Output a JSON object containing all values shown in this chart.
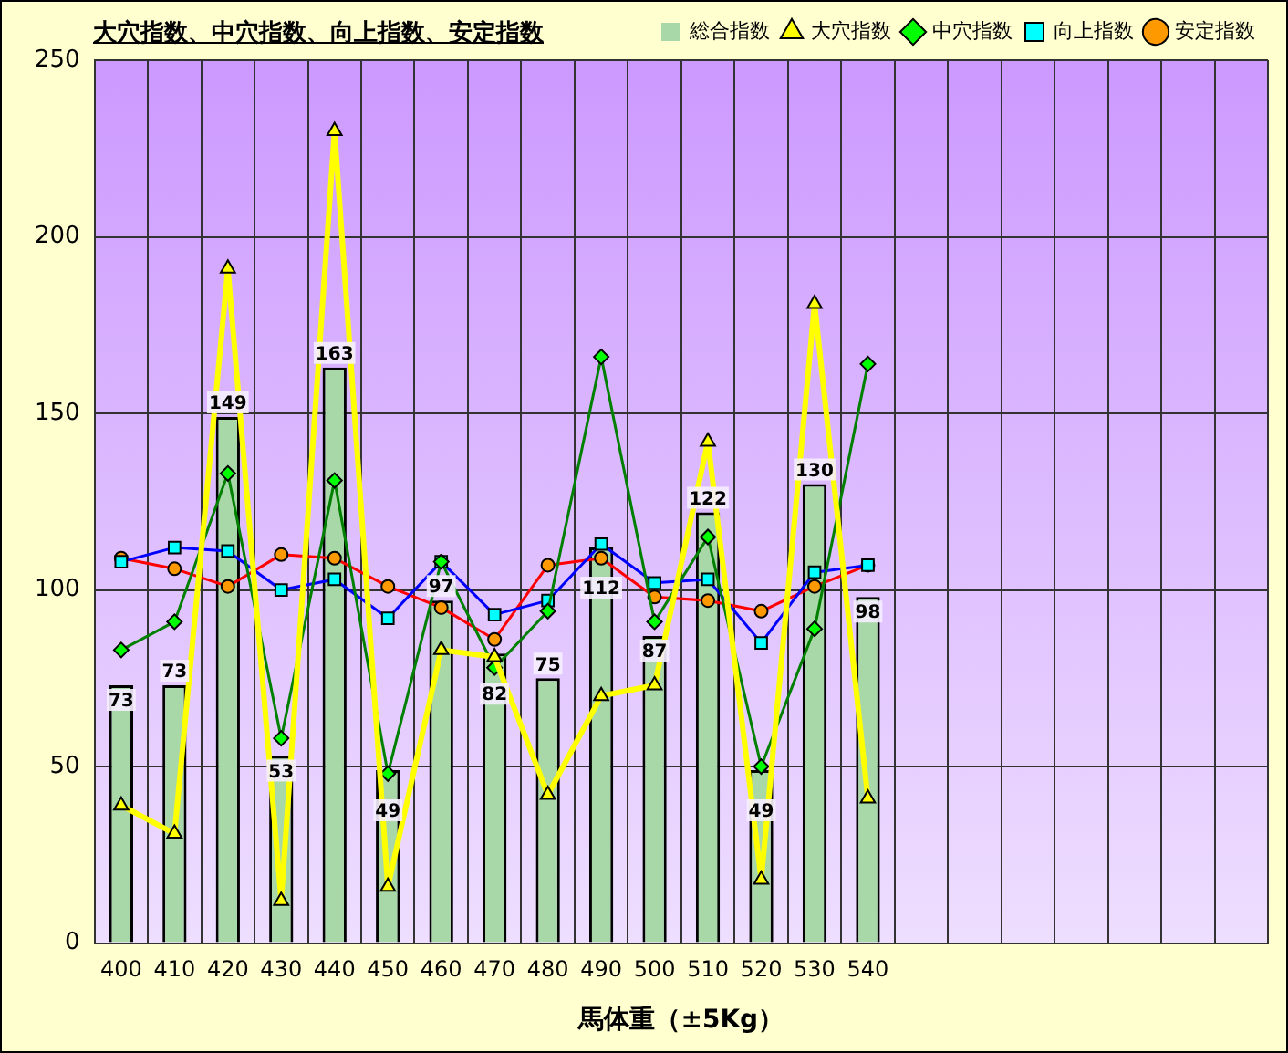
{
  "chart_data": {
    "type": "bar",
    "title": "大穴指数、中穴指数、向上指数、安定指数",
    "xlabel": "馬体重（±5Kg）",
    "categories": [
      "400",
      "410",
      "420",
      "430",
      "440",
      "450",
      "460",
      "470",
      "480",
      "490",
      "500",
      "510",
      "520",
      "530",
      "540",
      null,
      null,
      null,
      null,
      null,
      null,
      null
    ],
    "series": [
      {
        "name": "総合指数",
        "color": "#a8d8a8",
        "values": [
          73,
          73,
          149,
          53,
          163,
          49,
          97,
          82,
          75,
          112,
          87,
          122,
          49,
          130,
          98,
          null,
          null,
          null,
          null,
          null,
          null,
          null
        ],
        "value_labels": [
          "73",
          "73",
          "149",
          "53",
          "163",
          "49",
          "97",
          "82",
          "75",
          "112",
          "87",
          "122",
          "49",
          "130",
          "98",
          null,
          null,
          null,
          null,
          null,
          null,
          null
        ]
      },
      {
        "name": "大穴指数",
        "type": "line",
        "color": "#ffff00",
        "marker": "triangle",
        "values": [
          39,
          31,
          191,
          12,
          230,
          16,
          83,
          81,
          42,
          70,
          73,
          142,
          18,
          181,
          41,
          null,
          null,
          null,
          null,
          null,
          null,
          null
        ]
      },
      {
        "name": "中穴指数",
        "type": "line",
        "color": "#008000",
        "marker": "diamond",
        "values": [
          83,
          91,
          133,
          58,
          131,
          48,
          108,
          78,
          94,
          166,
          91,
          115,
          50,
          89,
          164,
          null,
          null,
          null,
          null,
          null,
          null,
          null
        ]
      },
      {
        "name": "向上指数",
        "type": "line",
        "color": "#0000ff",
        "marker": "square",
        "values": [
          108,
          112,
          111,
          100,
          103,
          92,
          108,
          93,
          97,
          113,
          102,
          103,
          85,
          105,
          107,
          null,
          null,
          null,
          null,
          null,
          null,
          null
        ]
      },
      {
        "name": "安定指数",
        "type": "line",
        "color": "#ff0000",
        "marker": "circle",
        "values": [
          109,
          106,
          101,
          110,
          109,
          101,
          95,
          86,
          107,
          109,
          98,
          97,
          94,
          101,
          107,
          null,
          null,
          null,
          null,
          null,
          null,
          null
        ]
      }
    ],
    "ylim": [
      0,
      250
    ],
    "yticks": [
      0,
      50,
      100,
      150,
      200,
      250
    ],
    "grid": true,
    "legend": "top right"
  }
}
